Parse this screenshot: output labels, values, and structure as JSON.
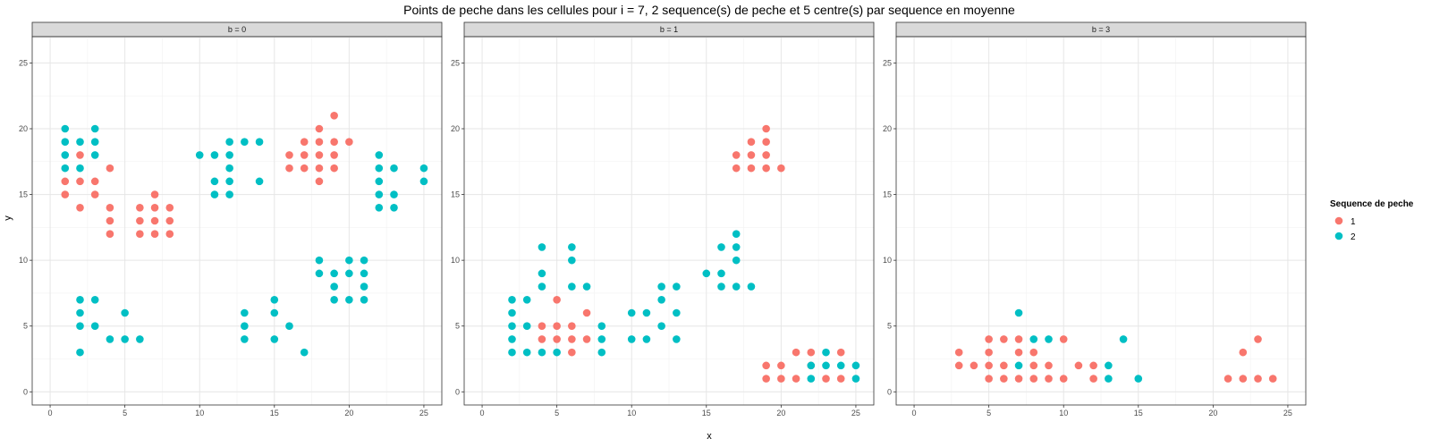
{
  "chart_data": {
    "type": "scatter",
    "title": "Points de peche dans les cellules pour i = 7, 2 sequence(s) de peche et 5 centre(s) par sequence en moyenne",
    "xlabel": "x",
    "ylabel": "y",
    "xlim": [
      -1.2,
      26.2
    ],
    "ylim": [
      -1,
      27
    ],
    "x_ticks": [
      0,
      5,
      10,
      15,
      20,
      25
    ],
    "y_ticks": [
      0,
      5,
      10,
      15,
      20,
      25
    ],
    "grid": true,
    "legend": {
      "title": "Sequence de peche",
      "placement": "right",
      "entries": [
        {
          "label": "1",
          "color": "#F8766D"
        },
        {
          "label": "2",
          "color": "#00BFC4"
        }
      ]
    },
    "panels": [
      {
        "label": "b = 0",
        "series": [
          {
            "name": "1",
            "points": [
              [
                1,
                15
              ],
              [
                1,
                16
              ],
              [
                2,
                14
              ],
              [
                2,
                16
              ],
              [
                2,
                18
              ],
              [
                3,
                15
              ],
              [
                3,
                16
              ],
              [
                4,
                17
              ],
              [
                4,
                12
              ],
              [
                4,
                13
              ],
              [
                4,
                14
              ],
              [
                6,
                12
              ],
              [
                6,
                13
              ],
              [
                6,
                14
              ],
              [
                7,
                12
              ],
              [
                7,
                13
              ],
              [
                7,
                14
              ],
              [
                7,
                15
              ],
              [
                8,
                12
              ],
              [
                8,
                13
              ],
              [
                8,
                14
              ],
              [
                16,
                17
              ],
              [
                16,
                18
              ],
              [
                17,
                17
              ],
              [
                17,
                18
              ],
              [
                17,
                19
              ],
              [
                18,
                16
              ],
              [
                18,
                17
              ],
              [
                18,
                18
              ],
              [
                18,
                19
              ],
              [
                18,
                20
              ],
              [
                19,
                17
              ],
              [
                19,
                18
              ],
              [
                19,
                19
              ],
              [
                19,
                21
              ],
              [
                20,
                19
              ]
            ]
          },
          {
            "name": "2",
            "points": [
              [
                1,
                17
              ],
              [
                1,
                18
              ],
              [
                1,
                19
              ],
              [
                1,
                20
              ],
              [
                2,
                17
              ],
              [
                2,
                19
              ],
              [
                3,
                18
              ],
              [
                3,
                19
              ],
              [
                3,
                20
              ],
              [
                2,
                3
              ],
              [
                2,
                5
              ],
              [
                2,
                6
              ],
              [
                2,
                7
              ],
              [
                3,
                5
              ],
              [
                3,
                7
              ],
              [
                4,
                4
              ],
              [
                5,
                4
              ],
              [
                5,
                6
              ],
              [
                6,
                4
              ],
              [
                10,
                18
              ],
              [
                11,
                15
              ],
              [
                11,
                16
              ],
              [
                11,
                18
              ],
              [
                12,
                15
              ],
              [
                12,
                16
              ],
              [
                12,
                17
              ],
              [
                12,
                18
              ],
              [
                12,
                19
              ],
              [
                13,
                19
              ],
              [
                14,
                16
              ],
              [
                14,
                19
              ],
              [
                13,
                4
              ],
              [
                13,
                5
              ],
              [
                13,
                6
              ],
              [
                15,
                4
              ],
              [
                15,
                6
              ],
              [
                15,
                7
              ],
              [
                16,
                5
              ],
              [
                17,
                3
              ],
              [
                18,
                9
              ],
              [
                18,
                10
              ],
              [
                19,
                7
              ],
              [
                19,
                8
              ],
              [
                19,
                9
              ],
              [
                20,
                7
              ],
              [
                20,
                9
              ],
              [
                20,
                10
              ],
              [
                21,
                7
              ],
              [
                21,
                8
              ],
              [
                21,
                9
              ],
              [
                21,
                10
              ],
              [
                22,
                14
              ],
              [
                22,
                15
              ],
              [
                22,
                16
              ],
              [
                22,
                17
              ],
              [
                22,
                18
              ],
              [
                23,
                14
              ],
              [
                23,
                15
              ],
              [
                23,
                17
              ],
              [
                25,
                16
              ],
              [
                25,
                17
              ]
            ]
          }
        ]
      },
      {
        "label": "b = 1",
        "series": [
          {
            "name": "1",
            "points": [
              [
                4,
                4
              ],
              [
                4,
                5
              ],
              [
                5,
                4
              ],
              [
                5,
                5
              ],
              [
                5,
                7
              ],
              [
                6,
                3
              ],
              [
                6,
                4
              ],
              [
                6,
                5
              ],
              [
                7,
                4
              ],
              [
                7,
                6
              ],
              [
                17,
                17
              ],
              [
                17,
                18
              ],
              [
                18,
                17
              ],
              [
                18,
                18
              ],
              [
                18,
                19
              ],
              [
                19,
                17
              ],
              [
                19,
                18
              ],
              [
                19,
                19
              ],
              [
                19,
                20
              ],
              [
                20,
                17
              ],
              [
                19,
                1
              ],
              [
                19,
                2
              ],
              [
                20,
                1
              ],
              [
                20,
                2
              ],
              [
                21,
                1
              ],
              [
                21,
                3
              ],
              [
                22,
                2
              ],
              [
                22,
                3
              ],
              [
                23,
                1
              ],
              [
                24,
                1
              ],
              [
                24,
                3
              ]
            ]
          },
          {
            "name": "2",
            "points": [
              [
                2,
                3
              ],
              [
                2,
                4
              ],
              [
                2,
                5
              ],
              [
                2,
                6
              ],
              [
                2,
                7
              ],
              [
                3,
                3
              ],
              [
                3,
                5
              ],
              [
                3,
                7
              ],
              [
                4,
                3
              ],
              [
                4,
                8
              ],
              [
                4,
                9
              ],
              [
                4,
                11
              ],
              [
                5,
                3
              ],
              [
                6,
                8
              ],
              [
                6,
                10
              ],
              [
                6,
                11
              ],
              [
                7,
                8
              ],
              [
                8,
                3
              ],
              [
                8,
                4
              ],
              [
                8,
                5
              ],
              [
                10,
                4
              ],
              [
                10,
                6
              ],
              [
                11,
                4
              ],
              [
                11,
                6
              ],
              [
                12,
                5
              ],
              [
                12,
                7
              ],
              [
                12,
                8
              ],
              [
                13,
                4
              ],
              [
                13,
                6
              ],
              [
                13,
                8
              ],
              [
                15,
                9
              ],
              [
                16,
                8
              ],
              [
                16,
                9
              ],
              [
                16,
                11
              ],
              [
                17,
                8
              ],
              [
                17,
                10
              ],
              [
                17,
                11
              ],
              [
                17,
                12
              ],
              [
                18,
                8
              ],
              [
                22,
                1
              ],
              [
                22,
                2
              ],
              [
                23,
                2
              ],
              [
                23,
                3
              ],
              [
                24,
                2
              ],
              [
                25,
                1
              ],
              [
                25,
                2
              ]
            ]
          }
        ]
      },
      {
        "label": "b = 3",
        "series": [
          {
            "name": "1",
            "points": [
              [
                3,
                2
              ],
              [
                3,
                3
              ],
              [
                4,
                2
              ],
              [
                5,
                1
              ],
              [
                5,
                2
              ],
              [
                5,
                3
              ],
              [
                5,
                4
              ],
              [
                6,
                1
              ],
              [
                6,
                2
              ],
              [
                6,
                4
              ],
              [
                7,
                1
              ],
              [
                7,
                3
              ],
              [
                7,
                4
              ],
              [
                8,
                1
              ],
              [
                8,
                2
              ],
              [
                8,
                3
              ],
              [
                9,
                1
              ],
              [
                9,
                2
              ],
              [
                10,
                1
              ],
              [
                10,
                4
              ],
              [
                11,
                2
              ],
              [
                12,
                1
              ],
              [
                12,
                2
              ],
              [
                21,
                1
              ],
              [
                22,
                1
              ],
              [
                22,
                3
              ],
              [
                23,
                1
              ],
              [
                23,
                4
              ],
              [
                24,
                1
              ]
            ]
          },
          {
            "name": "2",
            "points": [
              [
                7,
                2
              ],
              [
                7,
                6
              ],
              [
                8,
                4
              ],
              [
                9,
                4
              ],
              [
                13,
                1
              ],
              [
                13,
                2
              ],
              [
                14,
                4
              ],
              [
                15,
                1
              ]
            ]
          }
        ]
      }
    ]
  }
}
